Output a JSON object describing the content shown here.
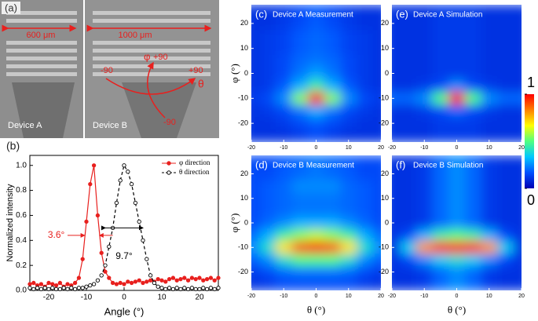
{
  "panel_a": {
    "label": "(a)",
    "scale_a": "600 μm",
    "scale_b": "1000 μm",
    "device_a": "Device A",
    "device_b": "Device B",
    "theta_minus": "-90",
    "theta_plus": "+90",
    "theta_symbol": "θ",
    "phi_symbol": "φ",
    "phi_plus": "+90",
    "phi_minus": "-90"
  },
  "colorbar": {
    "lim": [
      0,
      1
    ],
    "ticks": [
      0,
      1
    ],
    "colors": [
      "#0000b4",
      "#0050ff",
      "#00c8ff",
      "#50ff80",
      "#ffff00",
      "#ff8000",
      "#ff0000"
    ]
  },
  "chart_data": [
    {
      "type": "line",
      "panel_label": "(b)",
      "x_label": "Angle (°)",
      "y_label": "Normalized intensity",
      "xlim": [
        -25,
        25
      ],
      "ylim": [
        0,
        1.08
      ],
      "xticks": [
        -20,
        -10,
        0,
        10,
        20
      ],
      "yticks": [
        {
          "value": 0,
          "label": "0.0"
        },
        {
          "value": 0.2,
          "label": "0.2"
        },
        {
          "value": 0.4,
          "label": "0.4"
        },
        {
          "value": 0.6,
          "label": "0.6"
        },
        {
          "value": 0.8,
          "label": "0.8"
        },
        {
          "value": 1,
          "label": "1.0"
        }
      ],
      "legend": "top-right",
      "annotations": [
        {
          "text": "3.6°",
          "x": -18,
          "y": 0.44,
          "color": "#e8201e"
        },
        {
          "text": "9.7°",
          "x": 0,
          "y": 0.27,
          "color": "#000000"
        }
      ],
      "x": [
        -25,
        -24,
        -23,
        -22,
        -21,
        -20,
        -19,
        -18,
        -17,
        -16,
        -15,
        -14,
        -13,
        -12,
        -11,
        -10,
        -9,
        -8,
        -7,
        -6,
        -5,
        -4,
        -3,
        -2,
        -1,
        0,
        1,
        2,
        3,
        4,
        5,
        6,
        7,
        8,
        9,
        10,
        11,
        12,
        13,
        14,
        15,
        16,
        17,
        18,
        19,
        20,
        21,
        22,
        23,
        24,
        25
      ],
      "series": [
        {
          "name": "φ direction",
          "color": "#e8201e",
          "line_style": "solid",
          "marker": "filled",
          "values": [
            0.05,
            0.06,
            0.04,
            0.05,
            0.03,
            0.06,
            0.05,
            0.04,
            0.06,
            0.03,
            0.05,
            0.04,
            0.06,
            0.1,
            0.25,
            0.55,
            0.85,
            1.0,
            0.6,
            0.3,
            0.15,
            0.1,
            0.06,
            0.05,
            0.06,
            0.05,
            0.07,
            0.06,
            0.07,
            0.08,
            0.06,
            0.07,
            0.08,
            0.07,
            0.09,
            0.08,
            0.07,
            0.09,
            0.1,
            0.08,
            0.09,
            0.1,
            0.08,
            0.1,
            0.09,
            0.1,
            0.08,
            0.09,
            0.1,
            0.08,
            0.1
          ]
        },
        {
          "name": "θ direction",
          "color": "#000000",
          "line_style": "dashed",
          "marker": "open",
          "values": [
            0.02,
            0.01,
            0.02,
            0.01,
            0.02,
            0.01,
            0.02,
            0.01,
            0.01,
            0.02,
            0.01,
            0.02,
            0.01,
            0.02,
            0.02,
            0.03,
            0.04,
            0.05,
            0.08,
            0.12,
            0.2,
            0.35,
            0.5,
            0.7,
            0.88,
            1.0,
            0.95,
            0.85,
            0.7,
            0.55,
            0.4,
            0.25,
            0.12,
            0.06,
            0.03,
            0.02,
            0.01,
            0.02,
            0.01,
            0.02,
            0.01,
            0.02,
            0.01,
            0.02,
            0.01,
            0.01,
            0.02,
            0.01,
            0.02,
            0.01,
            0.02
          ]
        }
      ]
    },
    {
      "type": "heatmap",
      "panel_label": "(c)",
      "title": "Device A Measurement",
      "y_label": "φ (°)",
      "xlim": [
        -20,
        20
      ],
      "ylim": [
        -27.5,
        27.5
      ],
      "xticks": [
        -20,
        -10,
        0,
        10,
        20
      ],
      "yticks": [
        20,
        10,
        0,
        -10,
        -20
      ],
      "x": [
        -20,
        -15,
        -10,
        -5,
        0,
        5,
        10,
        15,
        20
      ],
      "y": [
        25,
        20,
        15,
        10,
        5,
        0,
        -5,
        -10,
        -15,
        -20,
        -25
      ],
      "z": [
        [
          0.1,
          0.1,
          0.12,
          0.15,
          0.18,
          0.15,
          0.12,
          0.1,
          0.1
        ],
        [
          0.1,
          0.1,
          0.12,
          0.15,
          0.18,
          0.15,
          0.12,
          0.1,
          0.1
        ],
        [
          0.1,
          0.12,
          0.14,
          0.18,
          0.2,
          0.18,
          0.14,
          0.12,
          0.1
        ],
        [
          0.1,
          0.12,
          0.14,
          0.18,
          0.2,
          0.18,
          0.14,
          0.12,
          0.1
        ],
        [
          0.1,
          0.12,
          0.15,
          0.2,
          0.22,
          0.2,
          0.15,
          0.12,
          0.1
        ],
        [
          0.1,
          0.12,
          0.15,
          0.22,
          0.28,
          0.22,
          0.15,
          0.12,
          0.1
        ],
        [
          0.1,
          0.12,
          0.18,
          0.3,
          0.45,
          0.3,
          0.18,
          0.12,
          0.1
        ],
        [
          0.12,
          0.15,
          0.25,
          0.55,
          1,
          0.55,
          0.25,
          0.15,
          0.12
        ],
        [
          0.1,
          0.12,
          0.15,
          0.22,
          0.3,
          0.22,
          0.15,
          0.12,
          0.1
        ],
        [
          0.1,
          0.1,
          0.12,
          0.15,
          0.18,
          0.15,
          0.12,
          0.1,
          0.1
        ],
        [
          0.1,
          0.1,
          0.1,
          0.12,
          0.15,
          0.12,
          0.1,
          0.1,
          0.1
        ]
      ]
    },
    {
      "type": "heatmap",
      "panel_label": "(e)",
      "title": "Device A Simulation",
      "xlim": [
        -20,
        20
      ],
      "ylim": [
        -27.5,
        27.5
      ],
      "xticks": [
        -20,
        -10,
        0,
        10,
        20
      ],
      "yticks": [
        20,
        10,
        0,
        -10,
        -20
      ],
      "x": [
        -20,
        -15,
        -10,
        -5,
        0,
        5,
        10,
        15,
        20
      ],
      "y": [
        25,
        20,
        15,
        10,
        5,
        0,
        -5,
        -10,
        -15,
        -20,
        -25
      ],
      "z": [
        [
          0.1,
          0.1,
          0.1,
          0.12,
          0.12,
          0.12,
          0.1,
          0.1,
          0.1
        ],
        [
          0.1,
          0.1,
          0.1,
          0.12,
          0.12,
          0.12,
          0.1,
          0.1,
          0.1
        ],
        [
          0.1,
          0.1,
          0.1,
          0.12,
          0.12,
          0.12,
          0.1,
          0.1,
          0.1
        ],
        [
          0.1,
          0.1,
          0.1,
          0.12,
          0.12,
          0.12,
          0.1,
          0.1,
          0.1
        ],
        [
          0.1,
          0.1,
          0.1,
          0.12,
          0.12,
          0.12,
          0.1,
          0.1,
          0.1
        ],
        [
          0.1,
          0.1,
          0.1,
          0.12,
          0.12,
          0.12,
          0.1,
          0.1,
          0.1
        ],
        [
          0.1,
          0.1,
          0.12,
          0.15,
          0.25,
          0.15,
          0.12,
          0.1,
          0.1
        ],
        [
          0.2,
          0.2,
          0.25,
          0.5,
          1,
          0.5,
          0.25,
          0.2,
          0.2
        ],
        [
          0.1,
          0.1,
          0.12,
          0.15,
          0.2,
          0.15,
          0.12,
          0.1,
          0.1
        ],
        [
          0.1,
          0.1,
          0.1,
          0.12,
          0.12,
          0.12,
          0.1,
          0.1,
          0.1
        ],
        [
          0.1,
          0.1,
          0.1,
          0.12,
          0.12,
          0.12,
          0.1,
          0.1,
          0.1
        ]
      ]
    },
    {
      "type": "heatmap",
      "panel_label": "(d)",
      "title": "Device B Measurement",
      "x_label": "θ (°)",
      "y_label": "φ (°)",
      "xlim": [
        -20,
        20
      ],
      "ylim": [
        -27.5,
        27.5
      ],
      "xticks": [
        -20,
        -10,
        0,
        10,
        20
      ],
      "yticks": [
        20,
        10,
        0,
        -10,
        -20
      ],
      "x": [
        -20,
        -15,
        -10,
        -5,
        0,
        5,
        10,
        15,
        20
      ],
      "y": [
        25,
        20,
        15,
        10,
        5,
        0,
        -5,
        -10,
        -15,
        -20,
        -25
      ],
      "z": [
        [
          0.15,
          0.15,
          0.18,
          0.2,
          0.22,
          0.2,
          0.18,
          0.15,
          0.15
        ],
        [
          0.15,
          0.15,
          0.18,
          0.2,
          0.22,
          0.2,
          0.18,
          0.15,
          0.15
        ],
        [
          0.15,
          0.18,
          0.2,
          0.25,
          0.25,
          0.25,
          0.2,
          0.18,
          0.15
        ],
        [
          0.15,
          0.18,
          0.2,
          0.22,
          0.22,
          0.22,
          0.2,
          0.18,
          0.15
        ],
        [
          0.15,
          0.18,
          0.2,
          0.22,
          0.22,
          0.22,
          0.2,
          0.18,
          0.15
        ],
        [
          0.15,
          0.2,
          0.25,
          0.3,
          0.3,
          0.3,
          0.25,
          0.2,
          0.15
        ],
        [
          0.2,
          0.3,
          0.45,
          0.55,
          0.6,
          0.55,
          0.45,
          0.3,
          0.2
        ],
        [
          0.25,
          0.4,
          0.7,
          0.9,
          1,
          0.9,
          0.7,
          0.4,
          0.25
        ],
        [
          0.18,
          0.25,
          0.4,
          0.5,
          0.5,
          0.5,
          0.4,
          0.25,
          0.18
        ],
        [
          0.12,
          0.15,
          0.2,
          0.22,
          0.22,
          0.22,
          0.2,
          0.15,
          0.12
        ],
        [
          0.1,
          0.12,
          0.15,
          0.15,
          0.15,
          0.15,
          0.15,
          0.12,
          0.1
        ]
      ]
    },
    {
      "type": "heatmap",
      "panel_label": "(f)",
      "title": "Device B Simulation",
      "x_label": "θ (°)",
      "xlim": [
        -20,
        20
      ],
      "ylim": [
        -27.5,
        27.5
      ],
      "xticks": [
        -20,
        -10,
        0,
        10,
        20
      ],
      "yticks": [
        20,
        10,
        0,
        -10,
        -20
      ],
      "x": [
        -20,
        -15,
        -10,
        -5,
        0,
        5,
        10,
        15,
        20
      ],
      "y": [
        25,
        20,
        15,
        10,
        5,
        0,
        -5,
        -10,
        -15,
        -20,
        -25
      ],
      "z": [
        [
          0.1,
          0.1,
          0.12,
          0.2,
          0.25,
          0.2,
          0.12,
          0.1,
          0.1
        ],
        [
          0.1,
          0.1,
          0.12,
          0.2,
          0.25,
          0.2,
          0.12,
          0.1,
          0.1
        ],
        [
          0.1,
          0.1,
          0.12,
          0.2,
          0.25,
          0.2,
          0.12,
          0.1,
          0.1
        ],
        [
          0.1,
          0.1,
          0.12,
          0.2,
          0.25,
          0.2,
          0.12,
          0.1,
          0.1
        ],
        [
          0.1,
          0.1,
          0.12,
          0.2,
          0.25,
          0.2,
          0.12,
          0.1,
          0.1
        ],
        [
          0.1,
          0.1,
          0.12,
          0.2,
          0.25,
          0.2,
          0.12,
          0.1,
          0.1
        ],
        [
          0.1,
          0.15,
          0.3,
          0.45,
          0.5,
          0.45,
          0.3,
          0.15,
          0.1
        ],
        [
          0.1,
          0.35,
          0.8,
          0.95,
          1,
          0.95,
          0.8,
          0.35,
          0.1
        ],
        [
          0.1,
          0.15,
          0.25,
          0.35,
          0.4,
          0.35,
          0.25,
          0.15,
          0.1
        ],
        [
          0.1,
          0.1,
          0.12,
          0.2,
          0.25,
          0.2,
          0.12,
          0.1,
          0.1
        ],
        [
          0.1,
          0.1,
          0.12,
          0.2,
          0.25,
          0.2,
          0.12,
          0.1,
          0.1
        ]
      ]
    }
  ]
}
